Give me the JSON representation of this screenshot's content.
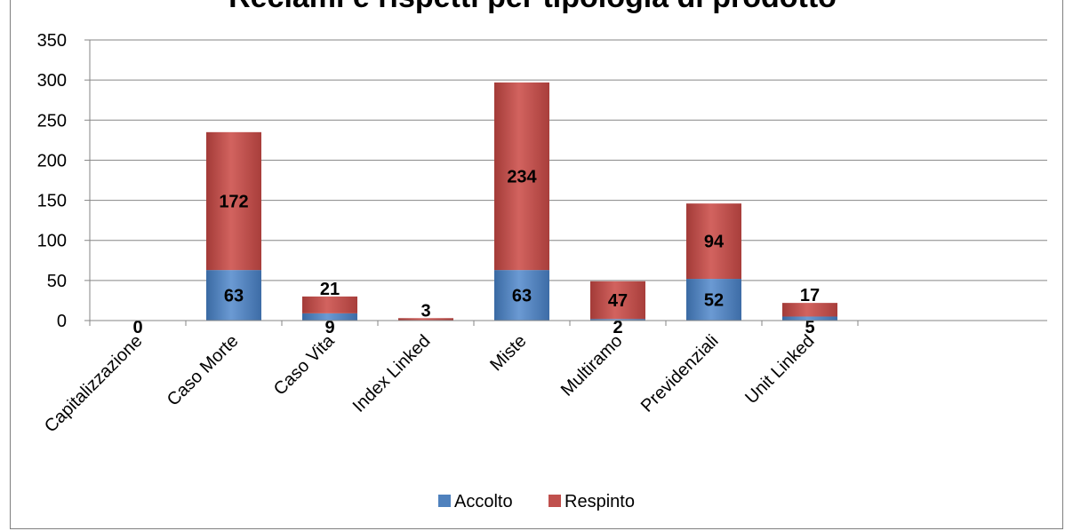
{
  "chart_data": {
    "type": "bar",
    "stacked": true,
    "title": "Reclami e rispetti per tipologia di prodotto",
    "xlabel": "",
    "ylabel": "",
    "ylim": [
      0,
      350
    ],
    "yticks": [
      0,
      50,
      100,
      150,
      200,
      250,
      300,
      350
    ],
    "grid": true,
    "legend_position": "bottom",
    "categories": [
      "Capitalizzazione",
      "Caso Morte",
      "Caso Vita",
      "Index Linked",
      "Miste",
      "Multiramo",
      "Previdenziali",
      "Unit Linked"
    ],
    "series": [
      {
        "name": "Accolto",
        "color": "#4f81bd",
        "values": [
          0,
          63,
          9,
          0,
          63,
          2,
          52,
          5
        ],
        "labels": [
          "0",
          "63",
          "9",
          "",
          "63",
          "2",
          "52",
          "5"
        ]
      },
      {
        "name": "Respinto",
        "color": "#c0504d",
        "values": [
          0,
          172,
          21,
          3,
          234,
          47,
          94,
          17
        ],
        "labels": [
          "",
          "172",
          "21",
          "3",
          "234",
          "47",
          "94",
          "17"
        ]
      }
    ]
  }
}
